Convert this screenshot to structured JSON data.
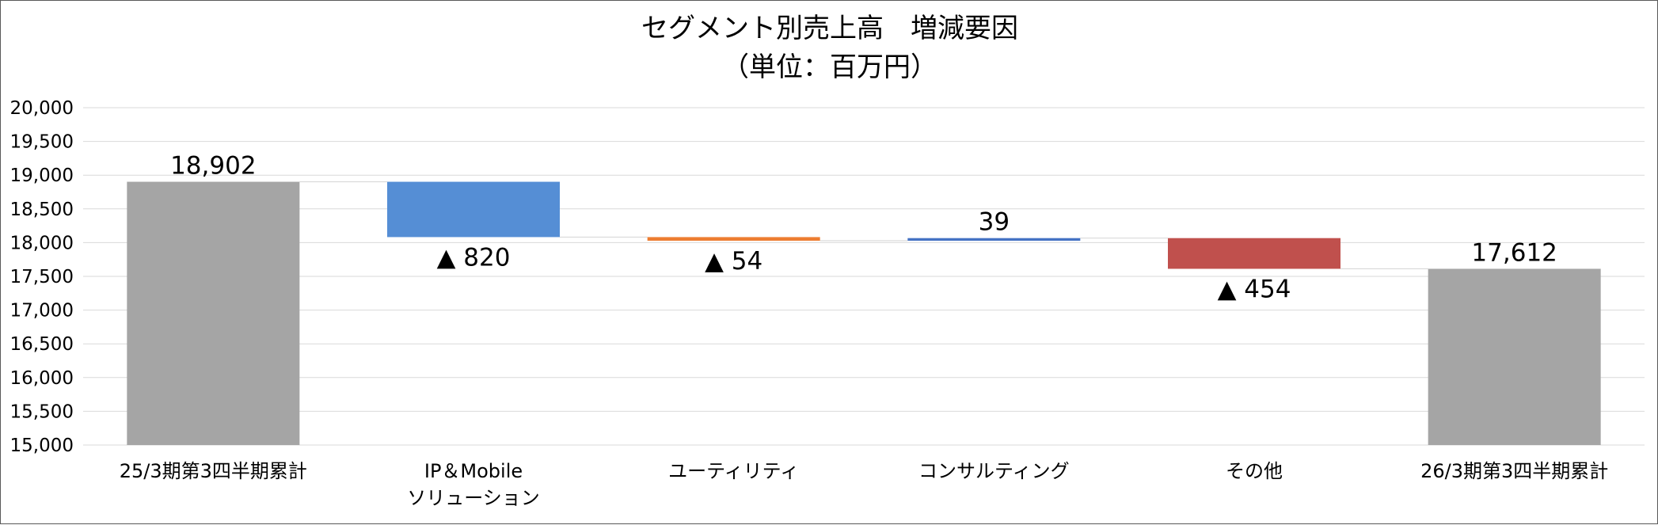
{
  "chart_data": {
    "type": "bar",
    "subtype": "waterfall",
    "title": "セグメント別売上高　増減要因",
    "subtitle": "（単位：百万円）",
    "ylim": [
      15000,
      20000
    ],
    "yticks": [
      "15,000",
      "15,500",
      "16,000",
      "16,500",
      "17,000",
      "17,500",
      "18,000",
      "18,500",
      "19,000",
      "19,500",
      "20,000"
    ],
    "grid": true,
    "categories": [
      [
        "25/3期第3四半期累計"
      ],
      [
        "IP＆Mobile",
        "ソリューション"
      ],
      [
        "ユーティリティ"
      ],
      [
        "コンサルティング"
      ],
      [
        "その他"
      ],
      [
        "26/3期第3四半期累計"
      ]
    ],
    "bars": [
      {
        "kind": "total",
        "from": 15000,
        "to": 18902,
        "label": "18,902",
        "color": "#a5a5a5"
      },
      {
        "kind": "delta",
        "from": 18902,
        "to": 18082,
        "label": "▲ 820",
        "color": "#558ed5"
      },
      {
        "kind": "delta",
        "from": 18082,
        "to": 18028,
        "label": "▲ 54",
        "color": "#ed7d31"
      },
      {
        "kind": "delta",
        "from": 18028,
        "to": 18067,
        "label": "39",
        "color": "#4472c4"
      },
      {
        "kind": "delta",
        "from": 18067,
        "to": 17612,
        "label": "▲ 454",
        "color": "#c0504d"
      },
      {
        "kind": "total",
        "from": 15000,
        "to": 17612,
        "label": "17,612",
        "color": "#a5a5a5"
      }
    ]
  }
}
